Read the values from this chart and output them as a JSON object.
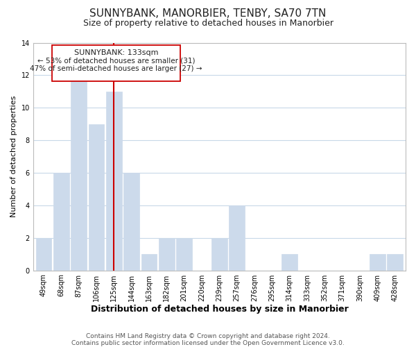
{
  "title": "SUNNYBANK, MANORBIER, TENBY, SA70 7TN",
  "subtitle": "Size of property relative to detached houses in Manorbier",
  "xlabel": "Distribution of detached houses by size in Manorbier",
  "ylabel": "Number of detached properties",
  "bar_labels": [
    "49sqm",
    "68sqm",
    "87sqm",
    "106sqm",
    "125sqm",
    "144sqm",
    "163sqm",
    "182sqm",
    "201sqm",
    "220sqm",
    "239sqm",
    "257sqm",
    "276sqm",
    "295sqm",
    "314sqm",
    "333sqm",
    "352sqm",
    "371sqm",
    "390sqm",
    "409sqm",
    "428sqm"
  ],
  "bar_values": [
    2,
    6,
    12,
    9,
    11,
    6,
    1,
    2,
    2,
    0,
    2,
    4,
    0,
    0,
    1,
    0,
    0,
    0,
    0,
    1,
    1
  ],
  "bar_color": "#ccdaeb",
  "highlight_line_color": "#cc0000",
  "highlight_line_index": 4,
  "annotation_title": "SUNNYBANK: 133sqm",
  "annotation_line1": "← 53% of detached houses are smaller (31)",
  "annotation_line2": "47% of semi-detached houses are larger (27) →",
  "annotation_box_facecolor": "#ffffff",
  "annotation_box_edgecolor": "#cc0000",
  "ylim": [
    0,
    14
  ],
  "yticks": [
    0,
    2,
    4,
    6,
    8,
    10,
    12,
    14
  ],
  "footer1": "Contains HM Land Registry data © Crown copyright and database right 2024.",
  "footer2": "Contains public sector information licensed under the Open Government Licence v3.0.",
  "background_color": "#ffffff",
  "grid_color": "#c8d8e8",
  "title_fontsize": 11,
  "subtitle_fontsize": 9,
  "xlabel_fontsize": 9,
  "ylabel_fontsize": 8,
  "tick_fontsize": 7,
  "footer_fontsize": 6.5,
  "ann_title_fontsize": 8,
  "ann_text_fontsize": 7.5
}
